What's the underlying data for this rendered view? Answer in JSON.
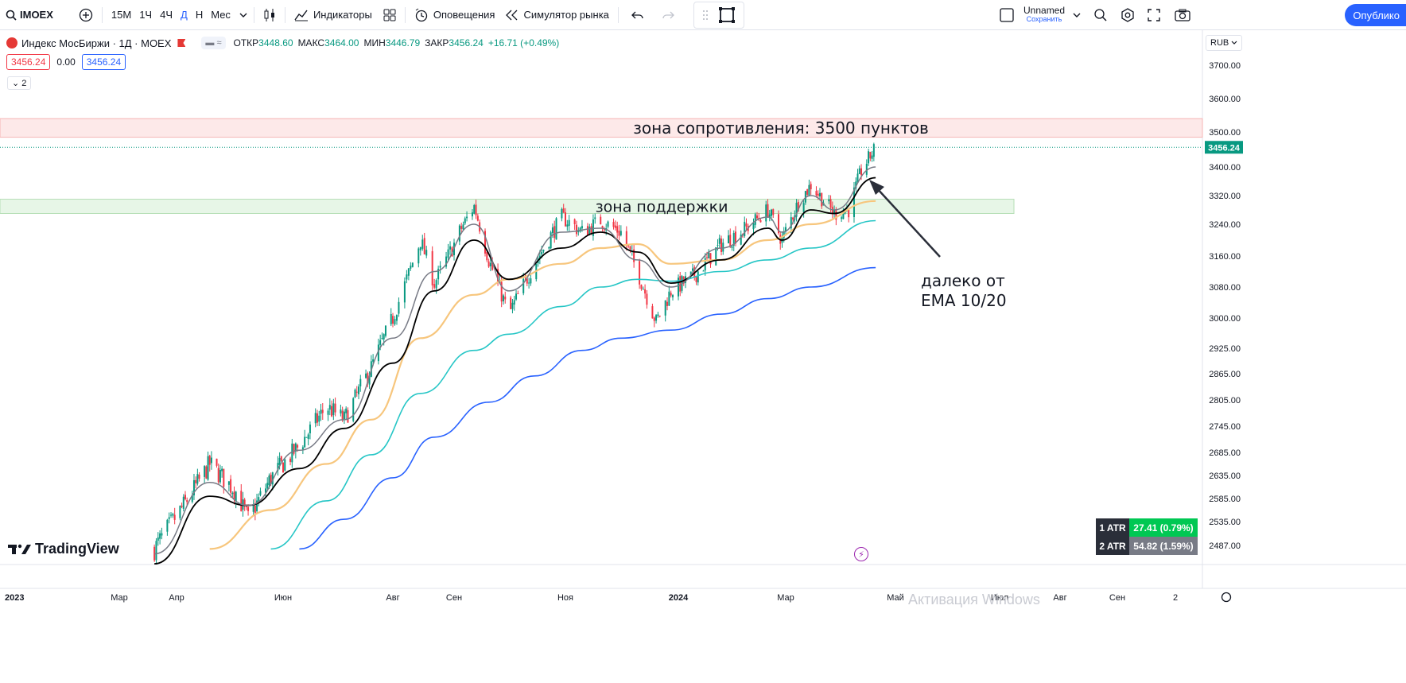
{
  "toolbar": {
    "symbol": "IMOEX",
    "intervals": [
      "15М",
      "1Ч",
      "4Ч",
      "Д",
      "Н",
      "Мес"
    ],
    "active_interval": "Д",
    "indicators_label": "Индикаторы",
    "alerts_label": "Оповещения",
    "replay_label": "Симулятор рынка",
    "layout_name": "Unnamed",
    "layout_save": "Сохранить",
    "publish_label": "Опублико"
  },
  "legend": {
    "title": "Индекс МосБиржи · 1Д · MOEX",
    "open_label": "ОТКР",
    "open": "3448.60",
    "high_label": "МАКС",
    "high": "3464.00",
    "low_label": "МИН",
    "low": "3446.79",
    "close_label": "ЗАКР",
    "close": "3456.24",
    "change": "+16.71 (+0.49%)",
    "bid": "3456.24",
    "spread": "0.00",
    "ask": "3456.24",
    "collapsed_count": "2"
  },
  "currency": "RUB",
  "atr": {
    "rows": [
      {
        "name": "1 ATR",
        "value": "27.41 (0.79%)"
      },
      {
        "name": "2 ATR",
        "value": "54.82 (1.59%)"
      }
    ]
  },
  "logo": "TradingView",
  "watermark": "Активация Windows",
  "colors": {
    "up": "#089981",
    "down": "#f23645",
    "ema10": "#787b86",
    "ema20": "#000000",
    "ema50": "#f7c67d",
    "ema100": "#26c6c6",
    "ema200": "#2962ff",
    "resistance_zone": "#fde4e4",
    "support_zone": "#e3f4e3"
  },
  "chart_data": {
    "type": "candlestick",
    "yticks": [
      "3700.00",
      "3600.00",
      "3500.00",
      "3400.00",
      "3320.00",
      "3240.00",
      "3160.00",
      "3080.00",
      "3000.00",
      "2925.00",
      "2865.00",
      "2805.00",
      "2745.00",
      "2685.00",
      "2635.00",
      "2585.00",
      "2535.00",
      "2487.00"
    ],
    "xticks": [
      "2023",
      "Мар",
      "Апр",
      "Июн",
      "Авг",
      "Сен",
      "Ноя",
      "2024",
      "Мар",
      "Май",
      "Июл",
      "Авг",
      "Сен",
      "2"
    ],
    "last_price": "3456.24",
    "annotations": {
      "resistance": "зона сопротивления: 3500 пунктов",
      "support": "зона поддержки",
      "note_line1": "далеко от",
      "note_line2": "EMA 10/20"
    },
    "zones": {
      "resistance": [
        3485,
        3540
      ],
      "support": [
        3270,
        3310
      ]
    },
    "price_path": [
      [
        "2023-03-20",
        2480
      ],
      [
        "2023-04-05",
        2570
      ],
      [
        "2023-04-20",
        2660
      ],
      [
        "2023-05-05",
        2600
      ],
      [
        "2023-05-12",
        2540
      ],
      [
        "2023-05-25",
        2630
      ],
      [
        "2023-06-10",
        2700
      ],
      [
        "2023-06-25",
        2790
      ],
      [
        "2023-07-05",
        2760
      ],
      [
        "2023-07-20",
        2880
      ],
      [
        "2023-08-01",
        3000
      ],
      [
        "2023-08-15",
        3200
      ],
      [
        "2023-08-22",
        3090
      ],
      [
        "2023-09-05",
        3230
      ],
      [
        "2023-09-12",
        3290
      ],
      [
        "2023-09-20",
        3150
      ],
      [
        "2023-10-01",
        3010
      ],
      [
        "2023-10-15",
        3140
      ],
      [
        "2023-10-30",
        3260
      ],
      [
        "2023-11-10",
        3220
      ],
      [
        "2023-11-20",
        3250
      ],
      [
        "2023-12-01",
        3220
      ],
      [
        "2023-12-10",
        3120
      ],
      [
        "2023-12-20",
        2990
      ],
      [
        "2023-12-28",
        3070
      ],
      [
        "2024-01-10",
        3110
      ],
      [
        "2024-01-25",
        3190
      ],
      [
        "2024-02-08",
        3230
      ],
      [
        "2024-02-20",
        3280
      ],
      [
        "2024-02-28",
        3200
      ],
      [
        "2024-03-08",
        3300
      ],
      [
        "2024-03-15",
        3350
      ],
      [
        "2024-03-28",
        3270
      ],
      [
        "2024-04-05",
        3280
      ],
      [
        "2024-04-12",
        3390
      ],
      [
        "2024-04-20",
        3456
      ]
    ],
    "ema10_path": [
      [
        "2023-03-20",
        2470
      ],
      [
        "2023-04-20",
        2620
      ],
      [
        "2023-05-12",
        2570
      ],
      [
        "2023-06-10",
        2690
      ],
      [
        "2023-07-05",
        2760
      ],
      [
        "2023-08-01",
        2950
      ],
      [
        "2023-08-22",
        3120
      ],
      [
        "2023-09-12",
        3240
      ],
      [
        "2023-10-01",
        3070
      ],
      [
        "2023-10-30",
        3220
      ],
      [
        "2023-11-20",
        3230
      ],
      [
        "2023-12-10",
        3150
      ],
      [
        "2023-12-28",
        3080
      ],
      [
        "2024-01-25",
        3180
      ],
      [
        "2024-02-20",
        3260
      ],
      [
        "2024-02-28",
        3220
      ],
      [
        "2024-03-15",
        3320
      ],
      [
        "2024-03-28",
        3280
      ],
      [
        "2024-04-20",
        3400
      ]
    ],
    "ema20_path": [
      [
        "2023-03-20",
        2450
      ],
      [
        "2023-04-20",
        2590
      ],
      [
        "2023-05-12",
        2570
      ],
      [
        "2023-06-10",
        2650
      ],
      [
        "2023-07-05",
        2740
      ],
      [
        "2023-08-01",
        2890
      ],
      [
        "2023-08-22",
        3070
      ],
      [
        "2023-09-12",
        3200
      ],
      [
        "2023-10-01",
        3100
      ],
      [
        "2023-10-30",
        3180
      ],
      [
        "2023-11-20",
        3220
      ],
      [
        "2023-12-10",
        3170
      ],
      [
        "2023-12-28",
        3090
      ],
      [
        "2024-01-25",
        3150
      ],
      [
        "2024-02-20",
        3230
      ],
      [
        "2024-02-28",
        3200
      ],
      [
        "2024-03-15",
        3280
      ],
      [
        "2024-03-28",
        3270
      ],
      [
        "2024-04-20",
        3370
      ]
    ],
    "ema50_path": [
      [
        "2023-04-20",
        2480
      ],
      [
        "2023-05-25",
        2560
      ],
      [
        "2023-06-25",
        2660
      ],
      [
        "2023-07-20",
        2760
      ],
      [
        "2023-08-15",
        2950
      ],
      [
        "2023-09-12",
        3060
      ],
      [
        "2023-10-01",
        3100
      ],
      [
        "2023-10-30",
        3140
      ],
      [
        "2023-11-20",
        3180
      ],
      [
        "2023-12-10",
        3190
      ],
      [
        "2023-12-28",
        3140
      ],
      [
        "2024-01-25",
        3150
      ],
      [
        "2024-02-20",
        3200
      ],
      [
        "2024-03-15",
        3240
      ],
      [
        "2024-04-20",
        3305
      ]
    ],
    "ema100_path": [
      [
        "2023-05-25",
        2480
      ],
      [
        "2023-06-25",
        2580
      ],
      [
        "2023-07-20",
        2680
      ],
      [
        "2023-08-15",
        2820
      ],
      [
        "2023-09-12",
        2920
      ],
      [
        "2023-10-01",
        2960
      ],
      [
        "2023-10-30",
        3030
      ],
      [
        "2023-11-20",
        3080
      ],
      [
        "2023-12-10",
        3100
      ],
      [
        "2023-12-28",
        3095
      ],
      [
        "2024-01-25",
        3120
      ],
      [
        "2024-02-20",
        3150
      ],
      [
        "2024-03-15",
        3180
      ],
      [
        "2024-04-20",
        3250
      ]
    ],
    "ema200_path": [
      [
        "2023-06-10",
        2480
      ],
      [
        "2023-07-05",
        2540
      ],
      [
        "2023-08-01",
        2630
      ],
      [
        "2023-08-22",
        2720
      ],
      [
        "2023-09-20",
        2800
      ],
      [
        "2023-10-15",
        2860
      ],
      [
        "2023-11-10",
        2920
      ],
      [
        "2023-12-01",
        2950
      ],
      [
        "2023-12-28",
        2970
      ],
      [
        "2024-01-25",
        3010
      ],
      [
        "2024-02-20",
        3050
      ],
      [
        "2024-03-15",
        3080
      ],
      [
        "2024-04-20",
        3130
      ]
    ]
  }
}
